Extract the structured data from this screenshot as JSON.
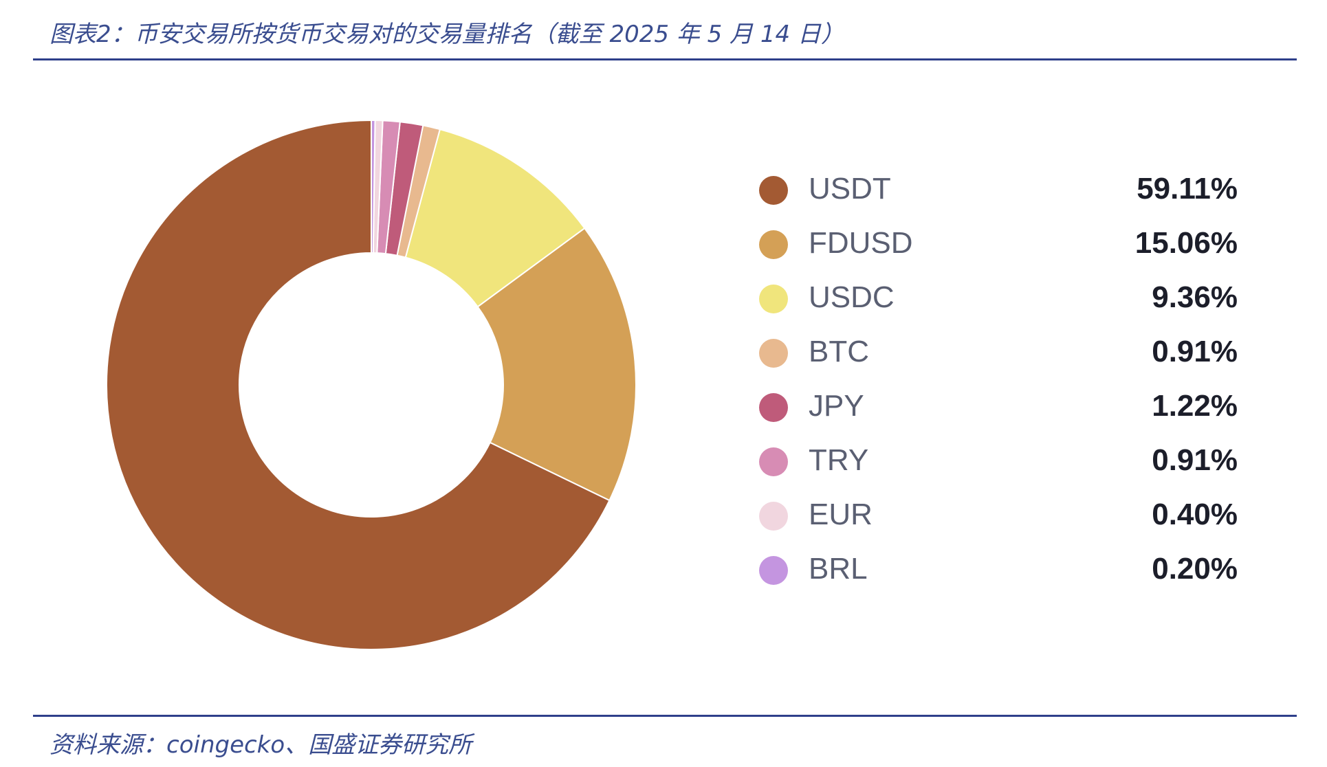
{
  "figure": {
    "title": "图表2：币安交易所按货币交易对的交易量排名（截至 2025 年 5 月 14 日）",
    "source": "资料来源：coingecko、国盛证券研究所"
  },
  "chart_data": {
    "type": "pie",
    "style": "donut",
    "title": "",
    "legend_position": "right",
    "categories": [
      "USDT",
      "FDUSD",
      "USDC",
      "BTC",
      "JPY",
      "TRY",
      "EUR",
      "BRL"
    ],
    "values": [
      59.11,
      15.06,
      9.36,
      0.91,
      1.22,
      0.91,
      0.4,
      0.2
    ],
    "value_labels": [
      "59.11%",
      "15.06%",
      "9.36%",
      "0.91%",
      "1.22%",
      "0.91%",
      "0.40%",
      "0.20%"
    ],
    "colors": [
      "#a35a33",
      "#d4a056",
      "#f0e57c",
      "#e8b98f",
      "#bf5b7a",
      "#d78cb4",
      "#f1d6df",
      "#c495e0"
    ]
  }
}
